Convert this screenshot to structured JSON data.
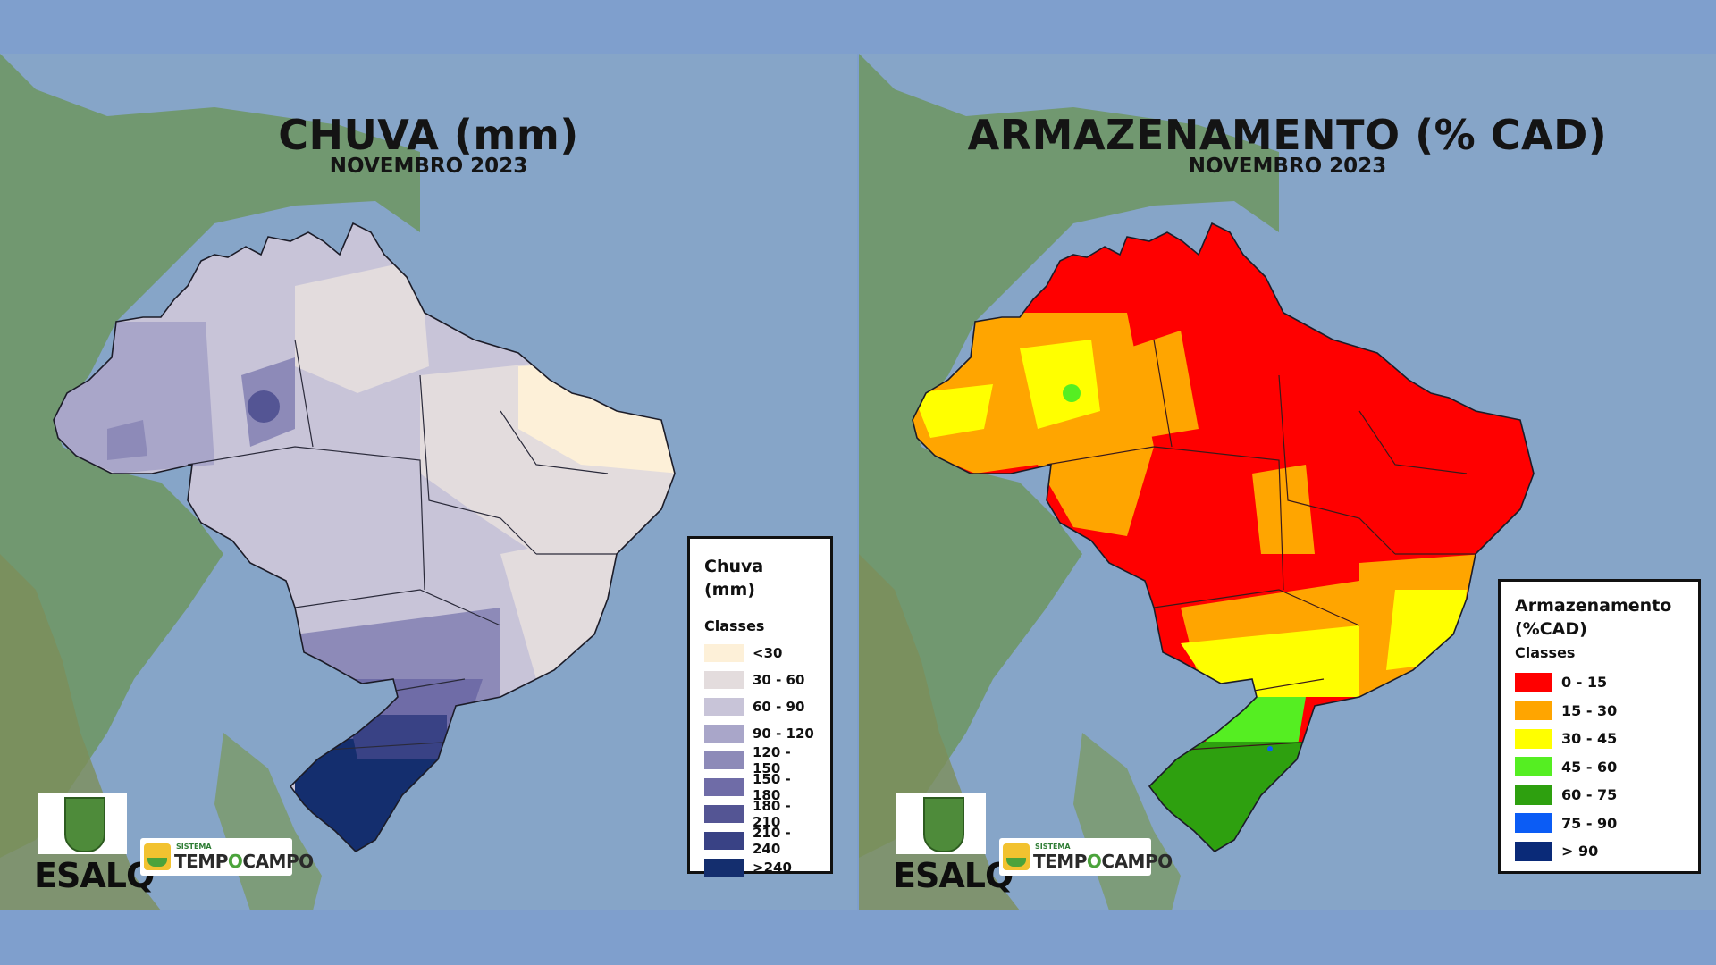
{
  "rain_map": {
    "title": "CHUVA (mm)",
    "subtitle": "NOVEMBRO 2023",
    "legend_title": "Chuva (mm)",
    "legend_subtitle": "Classes",
    "classes": [
      {
        "label": "<30",
        "color": "#fdf0d8"
      },
      {
        "label": "30 - 60",
        "color": "#e3dcdd"
      },
      {
        "label": "60 - 90",
        "color": "#c8c4d8"
      },
      {
        "label": "90 - 120",
        "color": "#a9a6c9"
      },
      {
        "label": "120 - 150",
        "color": "#8d8ab8"
      },
      {
        "label": "150 - 180",
        "color": "#6f6ca7"
      },
      {
        "label": "180 - 210",
        "color": "#545594"
      },
      {
        "label": "210 - 240",
        "color": "#394285"
      },
      {
        "label": ">240",
        "color": "#142e6e"
      }
    ]
  },
  "storage_map": {
    "title": "ARMAZENAMENTO (% CAD)",
    "subtitle": "NOVEMBRO 2023",
    "legend_title_line1": "Armazenamento",
    "legend_title_line2": "(%CAD)",
    "legend_subtitle": "Classes",
    "classes": [
      {
        "label": "0 - 15",
        "color": "#ff0000"
      },
      {
        "label": "15 - 30",
        "color": "#ffa500"
      },
      {
        "label": "30 - 45",
        "color": "#ffff00"
      },
      {
        "label": "45 - 60",
        "color": "#55ee22"
      },
      {
        "label": "60 - 75",
        "color": "#2ea00f"
      },
      {
        "label": "75 - 90",
        "color": "#0b5cf5"
      },
      {
        "label": "> 90",
        "color": "#0a2a78"
      }
    ]
  },
  "logos": {
    "esalq": "ESALQ",
    "tempocampo_small": "SISTEMA",
    "tempocampo_main_1": "TEMP",
    "tempocampo_main_o": "O",
    "tempocampo_main_2": "CAMPO"
  }
}
